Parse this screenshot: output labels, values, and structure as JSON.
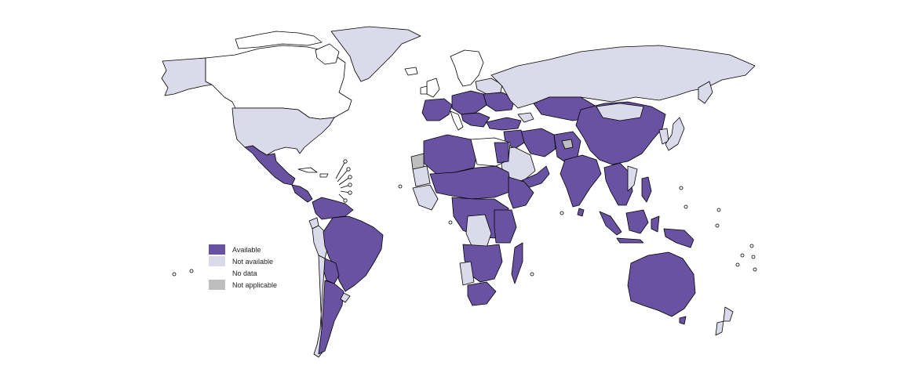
{
  "legend": {
    "items": [
      {
        "key": "available",
        "label": "Available",
        "color": "#6a52a3"
      },
      {
        "key": "not_available",
        "label": "Not available",
        "color": "#dadaea"
      },
      {
        "key": "no_data",
        "label": "No data",
        "color": "#ffffff"
      },
      {
        "key": "not_applicable",
        "label": "Not applicable",
        "color": "#bebebe"
      }
    ]
  },
  "map_style": {
    "border_color": "#000000",
    "ocean_color": "#ffffff"
  }
}
